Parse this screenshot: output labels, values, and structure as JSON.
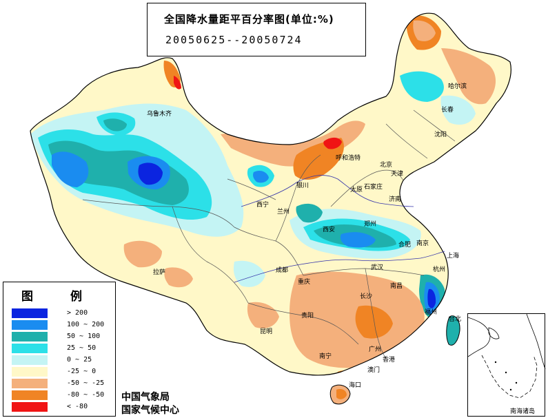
{
  "title": {
    "main": "全国降水量距平百分率图(单位:%)",
    "period": "20050625--20050724"
  },
  "legend": {
    "title": "图 例",
    "items": [
      {
        "label": "> 200",
        "color": "#0b24e0"
      },
      {
        "label": "100 ~ 200",
        "color": "#1a8cf0"
      },
      {
        "label": "50 ~ 100",
        "color": "#1fb0ac"
      },
      {
        "label": "25 ~ 50",
        "color": "#2ce0e8"
      },
      {
        "label": "0 ~ 25",
        "color": "#c4f4f4"
      },
      {
        "label": "-25 ~ 0",
        "color": "#fff8c8"
      },
      {
        "label": "-50 ~ -25",
        "color": "#f4b07c"
      },
      {
        "label": "-80 ~ -50",
        "color": "#f08424"
      },
      {
        "label": "< -80",
        "color": "#f01414"
      }
    ]
  },
  "credits": {
    "line1": "中国气象局",
    "line2": "国家气候中心"
  },
  "inset": {
    "label": "南海诸岛"
  },
  "cities": [
    {
      "name": "哈尔滨"
    },
    {
      "name": "长春"
    },
    {
      "name": "沈阳"
    },
    {
      "name": "呼和浩特"
    },
    {
      "name": "北京"
    },
    {
      "name": "天津"
    },
    {
      "name": "石家庄"
    },
    {
      "name": "太原"
    },
    {
      "name": "济南"
    },
    {
      "name": "银川"
    },
    {
      "name": "西宁"
    },
    {
      "name": "兰州"
    },
    {
      "name": "西安"
    },
    {
      "name": "郑州"
    },
    {
      "name": "合肥"
    },
    {
      "name": "南京"
    },
    {
      "name": "上海"
    },
    {
      "name": "杭州"
    },
    {
      "name": "武汉"
    },
    {
      "name": "成都"
    },
    {
      "name": "重庆"
    },
    {
      "name": "拉萨"
    },
    {
      "name": "乌鲁木齐"
    },
    {
      "name": "长沙"
    },
    {
      "name": "南昌"
    },
    {
      "name": "福州"
    },
    {
      "name": "台北"
    },
    {
      "name": "贵阳"
    },
    {
      "name": "昆明"
    },
    {
      "name": "南宁"
    },
    {
      "name": "广州"
    },
    {
      "name": "海口"
    },
    {
      "name": "香港"
    },
    {
      "name": "澳门"
    }
  ]
}
